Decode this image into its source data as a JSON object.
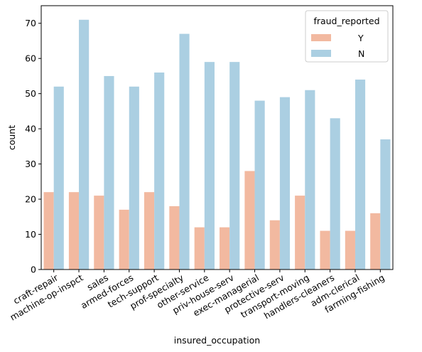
{
  "chart_data": {
    "type": "bar",
    "xlabel": "insured_occupation",
    "ylabel": "count",
    "ylim": [
      0,
      75
    ],
    "yticks": [
      0,
      10,
      20,
      30,
      40,
      50,
      60,
      70
    ],
    "grid": false,
    "legend": {
      "title": "fraud_reported",
      "placement": "top-right"
    },
    "categories": [
      "craft-repair",
      "machine-op-inspct",
      "sales",
      "armed-forces",
      "tech-support",
      "prof-specialty",
      "other-service",
      "priv-house-serv",
      "exec-managerial",
      "protective-serv",
      "transport-moving",
      "handlers-cleaners",
      "adm-clerical",
      "farming-fishing"
    ],
    "series": [
      {
        "name": "Y",
        "color": "#f2b9a0",
        "values": [
          22,
          22,
          21,
          17,
          22,
          18,
          12,
          12,
          28,
          14,
          21,
          11,
          11,
          16
        ]
      },
      {
        "name": "N",
        "color": "#abcfe2",
        "values": [
          52,
          71,
          55,
          52,
          56,
          67,
          59,
          59,
          48,
          49,
          51,
          43,
          54,
          37
        ]
      }
    ]
  }
}
